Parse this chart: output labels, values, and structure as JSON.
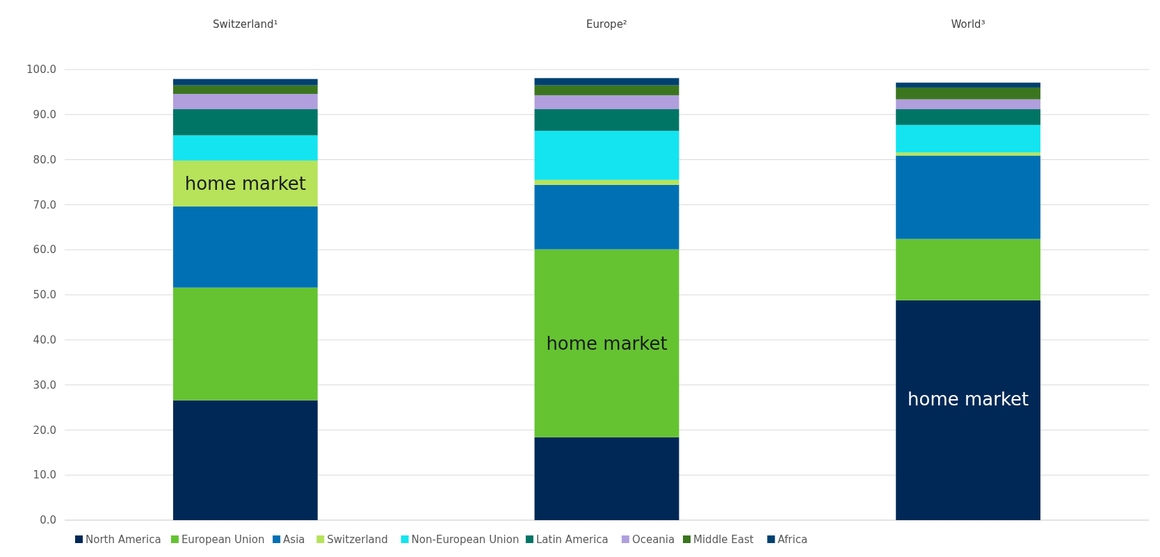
{
  "chart_data": {
    "type": "bar",
    "stacked": true,
    "categories": [
      "Switzerland¹",
      "Europe²",
      "World³"
    ],
    "series": [
      {
        "name": "North America",
        "color": "#002856",
        "values": [
          26.6,
          18.4,
          48.8
        ]
      },
      {
        "name": "European Union",
        "color": "#65c332",
        "values": [
          25.0,
          41.7,
          13.6
        ]
      },
      {
        "name": "Asia",
        "color": "#0070b5",
        "values": [
          18.0,
          14.3,
          18.5
        ]
      },
      {
        "name": "Switzerland",
        "color": "#b6e35a",
        "values": [
          10.2,
          1.1,
          0.7
        ]
      },
      {
        "name": "Non-European Union",
        "color": "#14e4ef",
        "values": [
          5.6,
          10.9,
          6.1
        ]
      },
      {
        "name": "Latin America",
        "color": "#007566",
        "values": [
          5.8,
          4.8,
          3.5
        ]
      },
      {
        "name": "Oceania",
        "color": "#b09fdc",
        "values": [
          3.4,
          3.1,
          2.2
        ]
      },
      {
        "name": "Middle East",
        "color": "#3b761f",
        "values": [
          1.9,
          2.2,
          2.6
        ]
      },
      {
        "name": "Africa",
        "color": "#004170",
        "values": [
          1.4,
          1.6,
          1.1
        ]
      }
    ],
    "ylim": [
      0,
      100
    ],
    "yticks": [
      {
        "value": 0,
        "label": "0.0"
      },
      {
        "value": 10,
        "label": "10.0"
      },
      {
        "value": 20,
        "label": "20.0"
      },
      {
        "value": 30,
        "label": "30.0"
      },
      {
        "value": 40,
        "label": "40.0"
      },
      {
        "value": 50,
        "label": "50.0"
      },
      {
        "value": 60,
        "label": "60.0"
      },
      {
        "value": 70,
        "label": "70.0"
      },
      {
        "value": 80,
        "label": "80.0"
      },
      {
        "value": 90,
        "label": "90.0"
      },
      {
        "value": 100,
        "label": "100.0"
      }
    ],
    "grid": "y",
    "legend": "bottom",
    "annotations": [
      "home market",
      "home market",
      "home market"
    ]
  }
}
